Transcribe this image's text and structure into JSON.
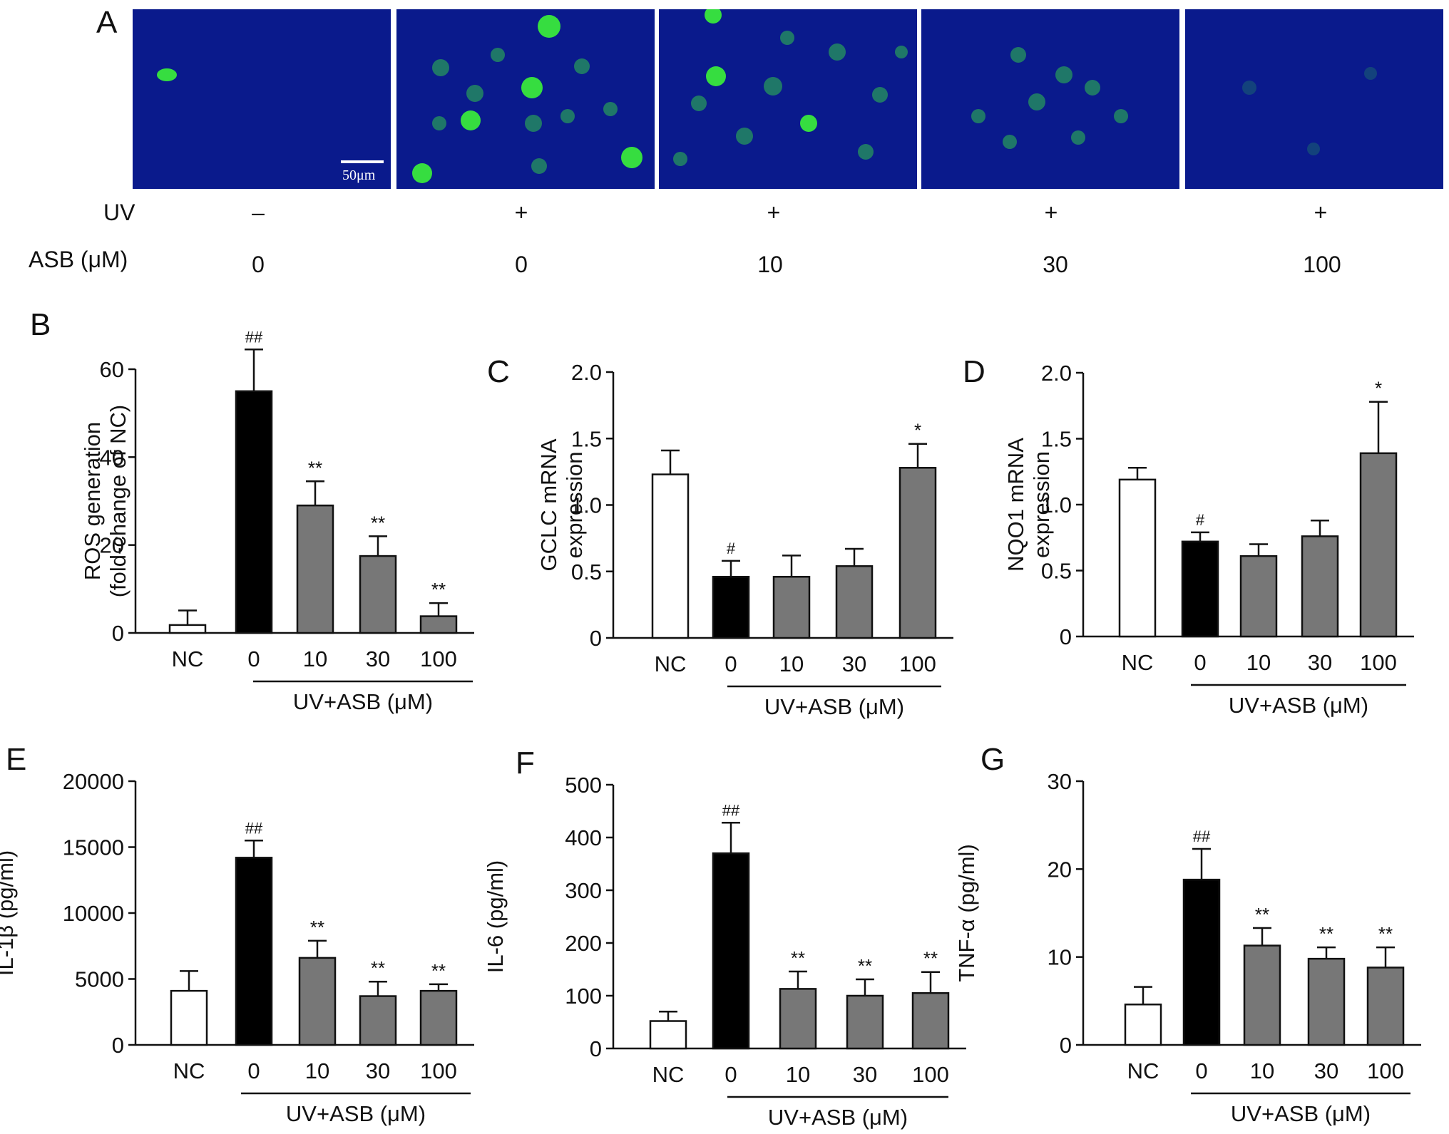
{
  "panel_a": {
    "letter": "A",
    "scale_bar_label": "50μm",
    "row_labels": {
      "uv": "UV",
      "asb": "ASB (μM)"
    },
    "columns": [
      {
        "uv": "–",
        "asb": "0"
      },
      {
        "uv": "+",
        "asb": "0"
      },
      {
        "uv": "+",
        "asb": "10"
      },
      {
        "uv": "+",
        "asb": "30"
      },
      {
        "uv": "+",
        "asb": "100"
      }
    ],
    "image_colors": {
      "background": "#0a1a8c",
      "fluorescence": "#39e83c"
    }
  },
  "colors": {
    "nc": "#ffffff",
    "uv": "#000000",
    "treated": "#777777",
    "axis": "#111111"
  },
  "chart_data": [
    {
      "panel": "B",
      "type": "bar",
      "ylabel": [
        "ROS generation",
        "(fold-change of NC)"
      ],
      "ylim": [
        0,
        60
      ],
      "yticks": [
        0,
        20,
        40,
        60
      ],
      "categories": [
        "NC",
        "0",
        "10",
        "30",
        "100"
      ],
      "group_label": "UV+ASB (μM)",
      "values": [
        1.8,
        55,
        29,
        17.5,
        3.8
      ],
      "errors": [
        3.3,
        9.5,
        5.5,
        4.5,
        3.0
      ],
      "annotations": [
        "",
        "##",
        "**",
        "**",
        "**"
      ],
      "fills": [
        "nc",
        "uv",
        "treated",
        "treated",
        "treated"
      ]
    },
    {
      "panel": "C",
      "type": "bar",
      "ylabel": [
        "GCLC mRNA",
        "expression"
      ],
      "ylim": [
        0,
        2.0
      ],
      "yticks": [
        "0",
        "0.5",
        "1.0",
        "1.5",
        "2.0"
      ],
      "categories": [
        "NC",
        "0",
        "10",
        "30",
        "100"
      ],
      "group_label": "UV+ASB (μM)",
      "values": [
        1.23,
        0.46,
        0.46,
        0.54,
        1.28
      ],
      "errors": [
        0.18,
        0.12,
        0.16,
        0.13,
        0.18
      ],
      "annotations": [
        "",
        "#",
        "",
        "",
        "*"
      ],
      "fills": [
        "nc",
        "uv",
        "treated",
        "treated",
        "treated"
      ]
    },
    {
      "panel": "D",
      "type": "bar",
      "ylabel": [
        "NQO1  mRNA",
        "expression"
      ],
      "ylim": [
        0,
        2.0
      ],
      "yticks": [
        "0",
        "0.5",
        "1.0",
        "1.5",
        "2.0"
      ],
      "categories": [
        "NC",
        "0",
        "10",
        "30",
        "100"
      ],
      "group_label": "UV+ASB (μM)",
      "values": [
        1.19,
        0.72,
        0.61,
        0.76,
        1.39
      ],
      "errors": [
        0.09,
        0.07,
        0.09,
        0.12,
        0.39
      ],
      "annotations": [
        "",
        "#",
        "",
        "",
        "*"
      ],
      "fills": [
        "nc",
        "uv",
        "treated",
        "treated",
        "treated"
      ]
    },
    {
      "panel": "E",
      "type": "bar",
      "ylabel": [
        "IL-1β (pg/ml)"
      ],
      "ylim": [
        0,
        20000
      ],
      "yticks": [
        0,
        5000,
        10000,
        15000,
        20000
      ],
      "categories": [
        "NC",
        "0",
        "10",
        "30",
        "100"
      ],
      "group_label": "UV+ASB (μM)",
      "values": [
        4100,
        14200,
        6600,
        3700,
        4100
      ],
      "errors": [
        1500,
        1300,
        1300,
        1100,
        500
      ],
      "annotations": [
        "",
        "##",
        "**",
        "**",
        "**"
      ],
      "fills": [
        "nc",
        "uv",
        "treated",
        "treated",
        "treated"
      ]
    },
    {
      "panel": "F",
      "type": "bar",
      "ylabel": [
        "IL-6 (pg/ml)"
      ],
      "ylim": [
        0,
        500
      ],
      "yticks": [
        0,
        100,
        200,
        300,
        400,
        500
      ],
      "categories": [
        "NC",
        "0",
        "10",
        "30",
        "100"
      ],
      "group_label": "UV+ASB (μM)",
      "values": [
        52,
        370,
        113,
        100,
        105
      ],
      "errors": [
        18,
        58,
        33,
        31,
        40
      ],
      "annotations": [
        "",
        "##",
        "**",
        "**",
        "**"
      ],
      "fills": [
        "nc",
        "uv",
        "treated",
        "treated",
        "treated"
      ]
    },
    {
      "panel": "G",
      "type": "bar",
      "ylabel": [
        "TNF-α (pg/ml)"
      ],
      "ylim": [
        0,
        30
      ],
      "yticks": [
        0,
        10,
        20,
        30
      ],
      "categories": [
        "NC",
        "0",
        "10",
        "30",
        "100"
      ],
      "group_label": "UV+ASB (μM)",
      "values": [
        4.6,
        18.8,
        11.3,
        9.8,
        8.8
      ],
      "errors": [
        2.0,
        3.5,
        2.0,
        1.3,
        2.3
      ],
      "annotations": [
        "",
        "##",
        "**",
        "**",
        "**"
      ],
      "fills": [
        "nc",
        "uv",
        "treated",
        "treated",
        "treated"
      ]
    }
  ]
}
